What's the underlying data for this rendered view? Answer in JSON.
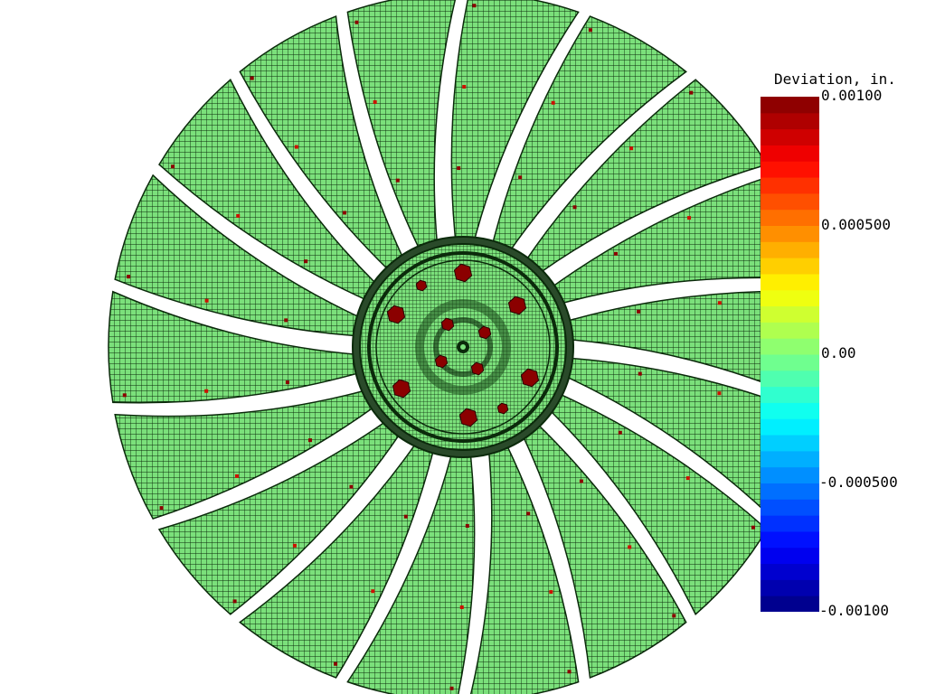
{
  "legend": {
    "title": "Deviation, in.",
    "ticks": [
      "0.00100",
      "0.000500",
      "0.00",
      "-0.000500",
      "-0.00100"
    ],
    "min": -0.001,
    "max": 0.001,
    "colormap": [
      "#00007f",
      "#0000ff",
      "#007fff",
      "#00ffff",
      "#7fff7f",
      "#ffff00",
      "#ff7f00",
      "#ff0000",
      "#7f0000"
    ]
  },
  "model": {
    "blade_count": 18,
    "mesh_color": "#7be07b",
    "hotspot_color": "#8b0000"
  }
}
